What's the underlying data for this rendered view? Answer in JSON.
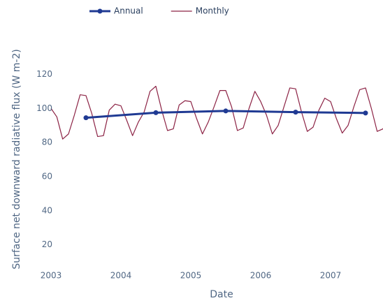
{
  "chart_data": {
    "type": "line",
    "xlabel": "Date",
    "ylabel": "Surface net downward radiative flux (W m-2)",
    "xlim": [
      "2003-01",
      "2007-10"
    ],
    "xticks": [
      {
        "value": "2003-01",
        "label": "2003"
      },
      {
        "value": "2004-01",
        "label": "2004"
      },
      {
        "value": "2005-01",
        "label": "2005"
      },
      {
        "value": "2006-01",
        "label": "2006"
      },
      {
        "value": "2007-01",
        "label": "2007"
      }
    ],
    "ylim": [
      10,
      130
    ],
    "yticks": [
      20,
      40,
      60,
      80,
      100,
      120
    ],
    "grid": false,
    "legend": "top",
    "series": [
      {
        "name": "Annual",
        "color": "#1f3a93",
        "markers": true,
        "x": [
          "2003-07",
          "2004-07",
          "2005-07",
          "2006-07",
          "2007-07"
        ],
        "values": [
          94.5,
          97.5,
          98.5,
          97.8,
          97.3
        ]
      },
      {
        "name": "Monthly",
        "color": "#8c2345",
        "markers": false,
        "x": [
          "2003-01",
          "2003-02",
          "2003-03",
          "2003-04",
          "2003-05",
          "2003-06",
          "2003-07",
          "2003-08",
          "2003-09",
          "2003-10",
          "2003-11",
          "2003-12",
          "2004-01",
          "2004-02",
          "2004-03",
          "2004-04",
          "2004-05",
          "2004-06",
          "2004-07",
          "2004-08",
          "2004-09",
          "2004-10",
          "2004-11",
          "2004-12",
          "2005-01",
          "2005-02",
          "2005-03",
          "2005-04",
          "2005-05",
          "2005-06",
          "2005-07",
          "2005-08",
          "2005-09",
          "2005-10",
          "2005-11",
          "2005-12",
          "2006-01",
          "2006-02",
          "2006-03",
          "2006-04",
          "2006-05",
          "2006-06",
          "2006-07",
          "2006-08",
          "2006-09",
          "2006-10",
          "2006-11",
          "2006-12",
          "2007-01",
          "2007-02",
          "2007-03",
          "2007-04",
          "2007-05",
          "2007-06",
          "2007-07",
          "2007-08",
          "2007-09",
          "2007-10",
          "2007-11"
        ],
        "values": [
          100,
          95,
          82,
          85,
          96,
          108,
          107.5,
          97,
          83.5,
          84,
          99,
          102.5,
          101.5,
          93,
          84,
          92,
          98,
          110,
          113,
          99,
          87,
          88,
          102,
          104.5,
          104,
          94,
          85,
          92,
          101,
          110.5,
          110.5,
          101,
          87,
          88.5,
          100,
          110,
          104,
          96,
          85,
          90,
          101,
          112,
          111.5,
          98,
          86.5,
          89,
          99,
          106,
          104,
          94,
          85.5,
          90,
          101,
          111,
          112,
          100,
          86.5,
          88,
          95
        ]
      }
    ]
  }
}
